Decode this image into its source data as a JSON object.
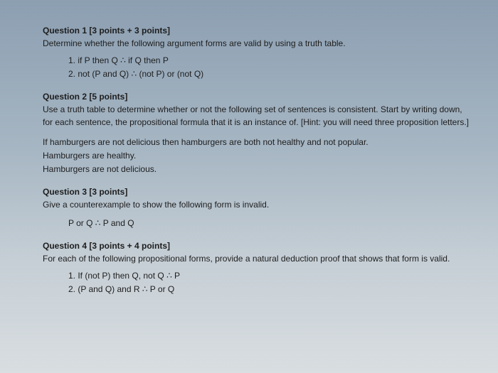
{
  "q1": {
    "title": "Question 1 [3 points + 3 points]",
    "body": "Determine whether the following argument forms are valid by using a truth table.",
    "items": [
      "1.   if P then Q ∴ if Q then P",
      "2.   not (P and Q) ∴ (not P) or (not Q)"
    ]
  },
  "q2": {
    "title": "Question 2 [5 points]",
    "body": "Use a truth table to determine whether or not the following set of sentences is consistent. Start by writing down, for each sentence, the propositional formula that it is an instance of. [Hint: you will need three proposition letters.]",
    "sentences": [
      "If hamburgers are not delicious then hamburgers are both not healthy and not popular.",
      "Hamburgers are healthy.",
      "Hamburgers are not delicious."
    ]
  },
  "q3": {
    "title": "Question 3 [3 points]",
    "body": "Give a counterexample to show the following form is invalid.",
    "formula": "P or Q ∴ P and Q"
  },
  "q4": {
    "title": "Question 4 [3 points + 4 points]",
    "body": "For each of the following propositional forms, provide a natural deduction proof that shows that form is valid.",
    "items": [
      "1.   If (not P) then Q, not Q ∴ P",
      "2.   (P and Q) and R ∴ P or Q"
    ]
  },
  "style": {
    "fontsize_body": 12,
    "color_text": "#1a1a1a",
    "bg_gradient_top": "#8a9db0",
    "bg_gradient_bottom": "#d8dde0"
  }
}
